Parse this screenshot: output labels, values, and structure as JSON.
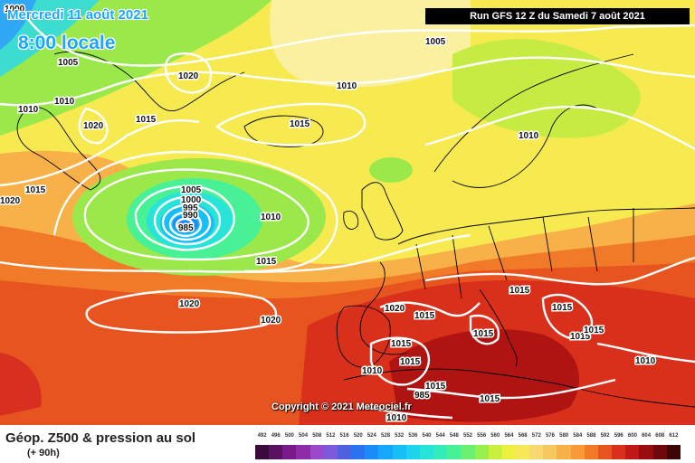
{
  "header": {
    "date": "Mercredi 11 août 2021",
    "local_time": "8:00 locale",
    "run": "Run GFS 12 Z du Samedi 7 août 2021"
  },
  "map": {
    "copyright": "Copyright © 2021 Meteociel.fr",
    "isobar_line_color": "#ffffff",
    "coastline_color": "#000000",
    "isobar_labels": [
      "1000",
      "1005",
      "1010",
      "1010",
      "1020",
      "1020",
      "1015",
      "1015",
      "1005",
      "1010",
      "1010",
      "1015",
      "1010",
      "1015",
      "1020",
      "1005",
      "1000",
      "995",
      "990",
      "985",
      "1010",
      "1015",
      "1020",
      "1020",
      "1020",
      "1015",
      "1015",
      "1015",
      "1015",
      "1015",
      "1015",
      "1015",
      "1015",
      "1015",
      "1010",
      "1010"
    ],
    "low_center": "985"
  },
  "footer": {
    "field": "Géop. Z500 & pression au sol",
    "forecast_hour": "(+ 90h)"
  },
  "legend": {
    "levels": [
      "492",
      "496",
      "500",
      "504",
      "508",
      "512",
      "516",
      "520",
      "524",
      "528",
      "532",
      "536",
      "540",
      "544",
      "548",
      "552",
      "556",
      "560",
      "564",
      "568",
      "572",
      "576",
      "580",
      "584",
      "588",
      "592",
      "596",
      "600",
      "604",
      "608",
      "612"
    ],
    "colors": [
      "#3a0a3c",
      "#5a1160",
      "#7a1a8a",
      "#8e2ca8",
      "#9a49c8",
      "#7a5ad8",
      "#4e62e0",
      "#2a72f0",
      "#1a8cf8",
      "#16a6fc",
      "#18bff6",
      "#1ed4ec",
      "#28e4d8",
      "#34ecb8",
      "#48f096",
      "#6cf070",
      "#98f04c",
      "#c8f03c",
      "#eef040",
      "#f6e858",
      "#f8d870",
      "#f8c860",
      "#f8b048",
      "#f89a38",
      "#f07a28",
      "#e85420",
      "#d8301a",
      "#c01814",
      "#9a0c0e",
      "#6e080a",
      "#3c0606"
    ]
  }
}
